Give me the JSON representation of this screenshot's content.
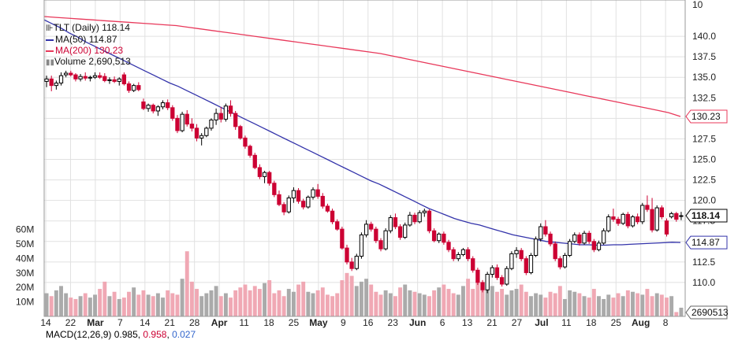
{
  "chart_data": {
    "type": "candlestick",
    "legend": {
      "symbol_text": "TLT (Daily)",
      "last": "118.14",
      "ma50_label": "MA(50)",
      "ma50_value": "114.87",
      "ma200_label": "MA(200)",
      "ma200_value": "130.23",
      "volume_label": "Volume",
      "volume_value": "2,690,513"
    },
    "price_axis_ticks": [
      "140.0",
      "137.5",
      "135.0",
      "132.5",
      "130.0",
      "127.5",
      "125.0",
      "122.5",
      "120.0",
      "117.5",
      "115.0",
      "112.5",
      "110.0"
    ],
    "price_axis_top_label": "10",
    "price_ylim": [
      107.5,
      142.5
    ],
    "volume_axis_ticks": [
      "10M",
      "20M",
      "30M",
      "40M",
      "50M",
      "60M"
    ],
    "volume_ylim": [
      0,
      62
    ],
    "x_tick_labels": [
      "14",
      "22",
      "Mar",
      "7",
      "14",
      "21",
      "28",
      "Apr",
      "11",
      "18",
      "25",
      "May",
      "9",
      "16",
      "23",
      "Jun",
      "6",
      "13",
      "21",
      "27",
      "Jul",
      "11",
      "18",
      "25",
      "Aug",
      "8"
    ],
    "badges": {
      "ma200": "130.23",
      "last": "118.14",
      "ma50": "114.87",
      "volume": "2690513"
    },
    "colors": {
      "up": "#000000",
      "down": "#cc0033",
      "ma50": "#3333aa",
      "ma200": "#e8385a",
      "vol_up": "#aaaaaa",
      "vol_down": "#f0a8b4",
      "grid": "#e1e1e1"
    },
    "candles": [
      [
        134.5,
        135.2,
        133.8,
        134.8
      ],
      [
        134.8,
        135.2,
        133.3,
        134.0
      ],
      [
        134.0,
        134.6,
        133.5,
        134.3
      ],
      [
        134.3,
        135.6,
        134.0,
        135.2
      ],
      [
        135.3,
        135.8,
        135.0,
        135.5
      ],
      [
        135.5,
        135.8,
        135.1,
        135.3
      ],
      [
        135.3,
        135.5,
        134.5,
        134.8
      ],
      [
        134.8,
        135.4,
        134.5,
        135.1
      ],
      [
        135.1,
        135.6,
        134.6,
        134.9
      ],
      [
        134.9,
        135.2,
        134.5,
        135.0
      ],
      [
        135.0,
        135.6,
        134.8,
        135.2
      ],
      [
        135.2,
        135.6,
        134.8,
        135.0
      ],
      [
        135.1,
        135.5,
        134.4,
        134.6
      ],
      [
        134.6,
        135.0,
        134.2,
        134.7
      ],
      [
        134.7,
        135.1,
        134.3,
        134.5
      ],
      [
        134.5,
        135.0,
        134.0,
        134.8
      ],
      [
        135.3,
        135.6,
        134.0,
        134.2
      ],
      [
        134.2,
        134.5,
        133.1,
        133.4
      ],
      [
        133.4,
        134.2,
        133.2,
        134.0
      ],
      [
        134.0,
        134.4,
        133.3,
        133.5
      ],
      [
        132.0,
        132.4,
        131.0,
        131.2
      ],
      [
        131.2,
        131.8,
        130.8,
        131.6
      ],
      [
        131.6,
        131.8,
        130.6,
        130.9
      ],
      [
        130.9,
        131.6,
        130.3,
        131.4
      ],
      [
        131.4,
        132.2,
        131.1,
        131.9
      ],
      [
        131.9,
        132.3,
        131.0,
        131.3
      ],
      [
        131.3,
        131.6,
        129.7,
        130.0
      ],
      [
        130.0,
        130.4,
        128.2,
        128.5
      ],
      [
        128.5,
        130.8,
        128.3,
        130.5
      ],
      [
        130.5,
        131.0,
        129.0,
        129.3
      ],
      [
        129.3,
        130.0,
        128.4,
        128.8
      ],
      [
        128.8,
        129.3,
        127.2,
        127.6
      ],
      [
        127.6,
        128.2,
        126.7,
        127.9
      ],
      [
        127.9,
        129.0,
        127.7,
        128.8
      ],
      [
        128.8,
        130.0,
        128.5,
        129.8
      ],
      [
        129.8,
        131.2,
        129.2,
        130.6
      ],
      [
        130.6,
        131.4,
        129.5,
        129.9
      ],
      [
        129.9,
        131.8,
        129.6,
        131.5
      ],
      [
        131.5,
        132.2,
        130.2,
        130.6
      ],
      [
        130.6,
        130.9,
        128.6,
        129.0
      ],
      [
        129.0,
        129.2,
        127.4,
        127.6
      ],
      [
        127.6,
        127.9,
        126.3,
        126.6
      ],
      [
        126.6,
        126.8,
        125.2,
        125.5
      ],
      [
        125.5,
        125.8,
        123.8,
        124.0
      ],
      [
        124.0,
        124.4,
        122.6,
        122.9
      ],
      [
        122.9,
        123.6,
        122.1,
        123.4
      ],
      [
        123.4,
        123.6,
        121.8,
        122.1
      ],
      [
        122.1,
        122.4,
        120.4,
        120.7
      ],
      [
        120.7,
        121.2,
        119.3,
        119.5
      ],
      [
        119.5,
        119.8,
        118.2,
        118.6
      ],
      [
        118.6,
        120.6,
        118.4,
        120.3
      ],
      [
        120.3,
        121.6,
        119.7,
        121.2
      ],
      [
        121.2,
        121.5,
        119.6,
        119.9
      ],
      [
        119.9,
        120.2,
        118.9,
        119.2
      ],
      [
        119.2,
        120.6,
        119.0,
        120.4
      ],
      [
        120.4,
        121.6,
        120.1,
        121.3
      ],
      [
        121.3,
        122.0,
        120.2,
        120.5
      ],
      [
        120.5,
        120.9,
        119.0,
        119.3
      ],
      [
        119.3,
        119.6,
        118.5,
        118.7
      ],
      [
        118.7,
        119.0,
        117.1,
        117.4
      ],
      [
        117.4,
        117.7,
        116.3,
        116.5
      ],
      [
        116.5,
        116.8,
        114.0,
        114.2
      ],
      [
        114.2,
        114.6,
        112.2,
        112.5
      ],
      [
        112.5,
        113.0,
        111.4,
        111.7
      ],
      [
        111.7,
        113.5,
        111.5,
        113.2
      ],
      [
        113.2,
        116.1,
        112.9,
        115.8
      ],
      [
        115.8,
        117.6,
        115.5,
        117.1
      ],
      [
        117.1,
        117.4,
        116.2,
        116.5
      ],
      [
        116.5,
        116.8,
        114.8,
        115.1
      ],
      [
        115.1,
        115.4,
        113.8,
        114.1
      ],
      [
        114.1,
        116.6,
        113.9,
        116.3
      ],
      [
        116.3,
        118.2,
        116.0,
        117.9
      ],
      [
        117.9,
        118.4,
        116.5,
        116.8
      ],
      [
        116.8,
        117.1,
        115.2,
        115.5
      ],
      [
        115.5,
        117.3,
        115.3,
        117.0
      ],
      [
        117.0,
        118.6,
        116.8,
        118.2
      ],
      [
        118.2,
        118.5,
        117.1,
        117.4
      ],
      [
        117.4,
        118.8,
        117.2,
        118.5
      ],
      [
        118.5,
        119.0,
        118.0,
        118.7
      ],
      [
        118.7,
        118.9,
        116.0,
        116.3
      ],
      [
        116.3,
        116.6,
        114.9,
        115.1
      ],
      [
        115.1,
        116.1,
        114.8,
        115.9
      ],
      [
        115.9,
        116.2,
        114.6,
        114.9
      ],
      [
        114.9,
        115.2,
        113.7,
        114.0
      ],
      [
        114.0,
        114.3,
        112.6,
        112.9
      ],
      [
        112.9,
        113.7,
        112.6,
        113.4
      ],
      [
        113.4,
        114.2,
        113.2,
        114.0
      ],
      [
        114.0,
        114.3,
        112.6,
        112.9
      ],
      [
        112.9,
        113.2,
        111.2,
        111.5
      ],
      [
        111.5,
        111.8,
        109.7,
        110.0
      ],
      [
        110.0,
        110.3,
        108.8,
        109.1
      ],
      [
        109.1,
        111.3,
        108.7,
        111.0
      ],
      [
        111.0,
        112.1,
        110.6,
        111.8
      ],
      [
        111.8,
        112.2,
        110.3,
        110.6
      ],
      [
        110.6,
        110.9,
        109.5,
        109.8
      ],
      [
        109.8,
        112.0,
        109.6,
        111.7
      ],
      [
        111.7,
        113.8,
        111.5,
        113.5
      ],
      [
        113.5,
        114.3,
        113.0,
        113.9
      ],
      [
        113.9,
        114.2,
        112.6,
        112.9
      ],
      [
        112.9,
        113.2,
        110.9,
        111.2
      ],
      [
        111.2,
        113.6,
        111.0,
        113.3
      ],
      [
        113.3,
        115.6,
        113.1,
        115.3
      ],
      [
        115.3,
        117.2,
        115.0,
        116.8
      ],
      [
        116.8,
        117.6,
        115.6,
        115.9
      ],
      [
        115.9,
        116.2,
        114.4,
        114.7
      ],
      [
        114.7,
        115.0,
        112.6,
        112.9
      ],
      [
        112.9,
        113.2,
        111.6,
        111.9
      ],
      [
        111.9,
        113.6,
        111.7,
        113.3
      ],
      [
        113.3,
        115.3,
        113.1,
        115.0
      ],
      [
        115.0,
        116.1,
        114.8,
        115.8
      ],
      [
        115.8,
        116.1,
        114.5,
        114.8
      ],
      [
        114.8,
        116.3,
        114.6,
        116.0
      ],
      [
        116.0,
        116.3,
        114.7,
        115.0
      ],
      [
        115.0,
        115.3,
        113.7,
        114.0
      ],
      [
        114.0,
        115.1,
        113.8,
        114.8
      ],
      [
        114.8,
        116.6,
        114.6,
        116.3
      ],
      [
        116.3,
        118.3,
        116.1,
        118.0
      ],
      [
        118.0,
        119.0,
        117.4,
        117.7
      ],
      [
        117.7,
        118.0,
        116.9,
        117.2
      ],
      [
        117.2,
        118.5,
        117.0,
        118.3
      ],
      [
        118.3,
        118.6,
        116.6,
        116.9
      ],
      [
        116.9,
        118.2,
        116.7,
        118.0
      ],
      [
        118.0,
        118.4,
        117.1,
        117.4
      ],
      [
        117.4,
        119.7,
        117.1,
        119.4
      ],
      [
        119.4,
        120.6,
        118.6,
        118.9
      ],
      [
        118.9,
        120.3,
        116.1,
        116.4
      ],
      [
        116.4,
        119.4,
        116.2,
        119.1
      ],
      [
        119.1,
        119.4,
        117.7,
        118.0
      ],
      [
        117.5,
        117.8,
        115.6,
        115.9
      ],
      [
        118.0,
        118.6,
        117.8,
        118.4
      ],
      [
        118.4,
        118.6,
        117.4,
        117.7
      ],
      [
        118.1,
        118.6,
        117.6,
        118.14
      ]
    ],
    "volume": [
      16,
      14,
      18,
      21,
      16,
      13,
      12,
      14,
      16,
      13,
      15,
      19,
      24,
      14,
      17,
      12,
      13,
      17,
      20,
      15,
      18,
      15,
      14,
      16,
      13,
      18,
      16,
      15,
      26,
      45,
      24,
      19,
      14,
      16,
      18,
      21,
      14,
      16,
      13,
      18,
      20,
      22,
      18,
      21,
      19,
      23,
      25,
      16,
      18,
      14,
      19,
      17,
      22,
      24,
      17,
      16,
      18,
      20,
      15,
      14,
      16,
      25,
      30,
      28,
      21,
      24,
      26,
      22,
      17,
      15,
      18,
      16,
      14,
      20,
      22,
      18,
      17,
      16,
      15,
      14,
      18,
      20,
      22,
      19,
      16,
      15,
      21,
      26,
      19,
      23,
      18,
      20,
      21,
      17,
      19,
      15,
      18,
      19,
      22,
      17,
      14,
      16,
      15,
      13,
      17,
      16,
      21,
      12,
      18,
      17,
      16,
      14,
      13,
      19,
      14,
      12,
      15,
      13,
      16,
      14,
      18,
      17,
      16,
      15,
      19,
      14,
      16,
      15,
      13,
      14,
      3,
      6
    ],
    "ma50": [
      142.0,
      141.5,
      141.0,
      140.4,
      139.9,
      139.3,
      138.8,
      138.3,
      137.8,
      137.3,
      136.8,
      136.3,
      135.8,
      135.3,
      134.8,
      134.3,
      133.9,
      133.4,
      132.9,
      132.4,
      131.9,
      131.4,
      130.9,
      130.4,
      129.9,
      129.4,
      128.9,
      128.4,
      127.9,
      127.4,
      126.9,
      126.4,
      125.9,
      125.4,
      124.9,
      124.4,
      123.9,
      123.4,
      122.9,
      122.4,
      122.0,
      121.5,
      121.0,
      120.5,
      120.0,
      119.5,
      119.0,
      118.6,
      118.2,
      117.8,
      117.5,
      117.2,
      117.0,
      116.7,
      116.4,
      116.1,
      115.8,
      115.6,
      115.4,
      115.2,
      115.0,
      114.9,
      114.8,
      114.7,
      114.6,
      114.6,
      114.55,
      114.55,
      114.6,
      114.6,
      114.65,
      114.7,
      114.75,
      114.8,
      114.85,
      114.9,
      114.87
    ],
    "ma200": [
      142.4,
      142.3,
      142.2,
      142.1,
      142.0,
      141.9,
      141.8,
      141.7,
      141.6,
      141.5,
      141.4,
      141.3,
      141.1,
      140.9,
      140.7,
      140.5,
      140.3,
      140.1,
      139.9,
      139.7,
      139.5,
      139.3,
      139.1,
      138.9,
      138.7,
      138.5,
      138.3,
      138.1,
      137.9,
      137.6,
      137.3,
      137.0,
      136.7,
      136.4,
      136.1,
      135.8,
      135.5,
      135.2,
      134.9,
      134.6,
      134.3,
      134.0,
      133.7,
      133.4,
      133.1,
      132.8,
      132.5,
      132.2,
      131.9,
      131.6,
      131.3,
      131.0,
      130.7,
      130.23
    ]
  },
  "macd_panel": {
    "label": "MACD(12,26,9)",
    "v1": "0.985",
    "v2": "0.958",
    "v3": "0.027"
  }
}
